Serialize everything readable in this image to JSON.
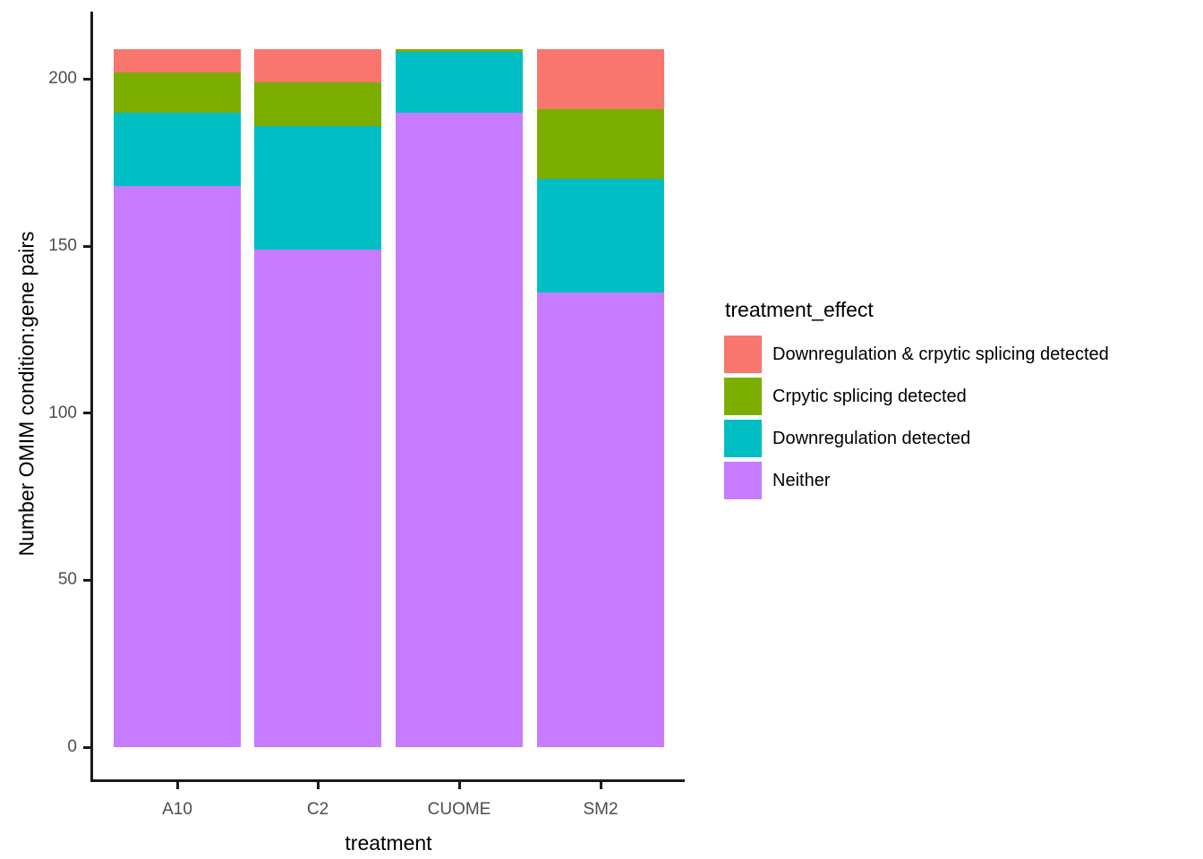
{
  "chart_data": {
    "type": "bar",
    "stacked": true,
    "title": "",
    "xlabel": "treatment",
    "ylabel": "Number OMIM condition:gene pairs",
    "categories": [
      "A10",
      "C2",
      "CUOME",
      "SM2"
    ],
    "series": [
      {
        "name": "Neither",
        "color": "#C77CFF",
        "values": [
          168,
          149,
          190,
          136
        ]
      },
      {
        "name": "Downregulation detected",
        "color": "#00BFC4",
        "values": [
          22,
          37,
          18,
          34
        ]
      },
      {
        "name": "Crpytic splicing detected",
        "color": "#7CAE00",
        "values": [
          12,
          13,
          1,
          21
        ]
      },
      {
        "name": "Downregulation & crpytic splicing detected",
        "color": "#F8766D",
        "values": [
          7,
          10,
          0,
          18
        ]
      }
    ],
    "yticks": [
      0,
      50,
      100,
      150,
      200
    ],
    "ylim": [
      0,
      209
    ],
    "grid": false,
    "legend": {
      "title": "treatment_effect",
      "position": "right",
      "items_top_to_bottom": [
        "Downregulation & crpytic splicing detected",
        "Crpytic splicing detected",
        "Downregulation detected",
        "Neither"
      ]
    }
  },
  "colors": {
    "background": "#FFFFFF",
    "axis_line": "#1A1A1A",
    "tick_label": "#4D4D4D",
    "text": "#000000"
  }
}
